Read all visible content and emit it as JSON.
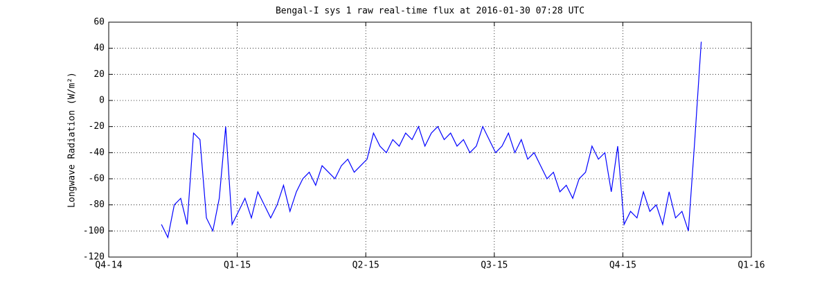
{
  "chart_data": {
    "type": "line",
    "title": "Bengal-I sys 1 raw real-time flux at 2016-01-30 07:28 UTC",
    "y_label": "Longwave Radiation (W/m²)",
    "x": [
      0.41,
      0.46,
      0.51,
      0.56,
      0.61,
      0.66,
      0.71,
      0.76,
      0.81,
      0.86,
      0.91,
      0.96,
      1.01,
      1.06,
      1.11,
      1.16,
      1.21,
      1.26,
      1.31,
      1.36,
      1.41,
      1.46,
      1.51,
      1.56,
      1.61,
      1.66,
      1.71,
      1.76,
      1.81,
      1.86,
      1.91,
      1.96,
      2.01,
      2.06,
      2.11,
      2.16,
      2.21,
      2.26,
      2.31,
      2.36,
      2.41,
      2.46,
      2.51,
      2.56,
      2.61,
      2.66,
      2.71,
      2.76,
      2.81,
      2.86,
      2.91,
      2.96,
      3.01,
      3.06,
      3.11,
      3.16,
      3.21,
      3.26,
      3.31,
      3.36,
      3.41,
      3.46,
      3.51,
      3.56,
      3.61,
      3.66,
      3.71,
      3.76,
      3.81,
      3.86,
      3.91,
      3.96,
      4.01,
      4.06,
      4.11,
      4.16,
      4.21,
      4.26,
      4.31,
      4.36,
      4.41,
      4.46,
      4.51,
      4.56,
      4.61
    ],
    "series": [
      {
        "color": "#0000ff",
        "values": [
          -95,
          -105,
          -80,
          -75,
          -95,
          -25,
          -30,
          -90,
          -100,
          -75,
          -20,
          -95,
          -85,
          -75,
          -90,
          -70,
          -80,
          -90,
          -80,
          -65,
          -85,
          -70,
          -60,
          -55,
          -65,
          -50,
          -55,
          -60,
          -50,
          -45,
          -55,
          -50,
          -45,
          -25,
          -35,
          -40,
          -30,
          -35,
          -25,
          -30,
          -20,
          -35,
          -25,
          -20,
          -30,
          -25,
          -35,
          -30,
          -40,
          -35,
          -20,
          -30,
          -40,
          -35,
          -25,
          -40,
          -30,
          -45,
          -40,
          -50,
          -60,
          -55,
          -70,
          -65,
          -75,
          -60,
          -55,
          -35,
          -45,
          -40,
          -70,
          -35,
          -95,
          -85,
          -90,
          -70,
          -85,
          -80,
          -95,
          -70,
          -90,
          -85,
          -100,
          -30,
          45
        ]
      }
    ],
    "xlim": [
      0,
      5
    ],
    "xticks": [
      {
        "value": 0,
        "label": "Q4-14"
      },
      {
        "value": 1,
        "label": "Q1-15"
      },
      {
        "value": 2,
        "label": "Q2-15"
      },
      {
        "value": 3,
        "label": "Q3-15"
      },
      {
        "value": 4,
        "label": "Q4-15"
      },
      {
        "value": 5,
        "label": "Q1-16"
      }
    ],
    "ylim": [
      -120,
      60
    ],
    "yticks": [
      -120,
      -100,
      -80,
      -60,
      -40,
      -20,
      0,
      20,
      40,
      60
    ],
    "grid": true
  }
}
